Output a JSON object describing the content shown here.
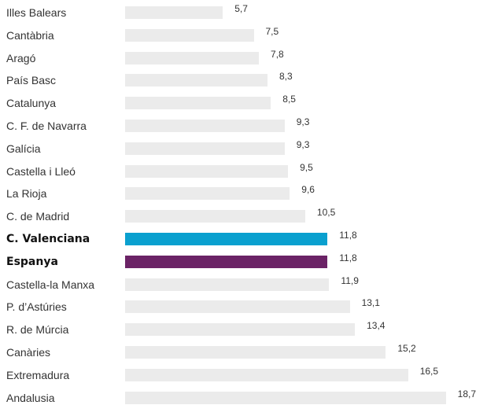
{
  "chart_data": {
    "type": "bar",
    "orientation": "horizontal",
    "title": "",
    "xlabel": "",
    "ylabel": "",
    "decimal_separator": ",",
    "grid": false,
    "legend": "none",
    "categories": [
      "Illes Balears",
      "Cantàbria",
      "Aragó",
      "País Basc",
      "Catalunya",
      "C. F. de Navarra",
      "Galícia",
      "Castella i Lleó",
      "La Rioja",
      "C. de Madrid",
      "C. Valenciana",
      "Espanya",
      "Castella-la Manxa",
      "P. d’Astúries",
      "R. de Múrcia",
      "Canàries",
      "Extremadura",
      "Andalusia"
    ],
    "values": [
      5.7,
      7.5,
      7.8,
      8.3,
      8.5,
      9.3,
      9.3,
      9.5,
      9.6,
      10.5,
      11.8,
      11.8,
      11.9,
      13.1,
      13.4,
      15.2,
      16.5,
      18.7
    ],
    "value_labels": [
      "5,7",
      "7,5",
      "7,8",
      "8,3",
      "8,5",
      "9,3",
      "9,3",
      "9,5",
      "9,6",
      "10,5",
      "11,8",
      "11,8",
      "11,9",
      "13,1",
      "13,4",
      "15,2",
      "16,5",
      "18,7"
    ],
    "highlighted": [
      "C. Valenciana",
      "Espanya"
    ],
    "colors": {
      "default_bar": "#ebebeb",
      "C. Valenciana": "#0aa0cf",
      "Espanya": "#6b2366"
    }
  }
}
